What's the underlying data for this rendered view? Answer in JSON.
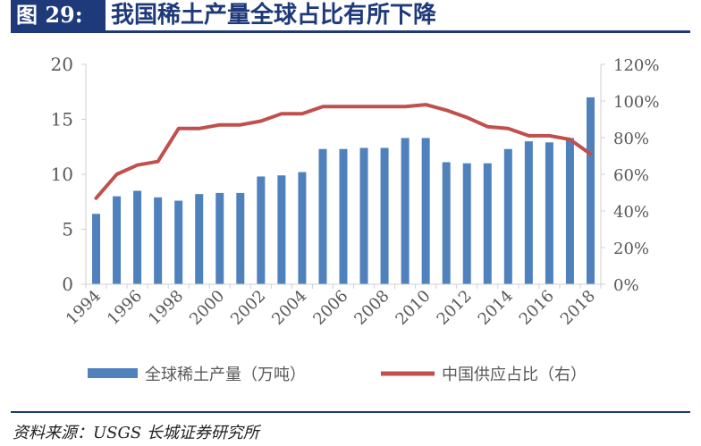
{
  "header": {
    "figure_label": "图 29:",
    "title": "我国稀土产量全球占比有所下降"
  },
  "source": "资料来源：USGS 长城证券研究所",
  "colors": {
    "bar": "#4f81bd",
    "line": "#c0504d",
    "header": "#1f3a7a",
    "axis": "#d0d0d0",
    "tick_text": "#595959"
  },
  "chart_data": {
    "type": "bar+line",
    "categories": [
      "1994",
      "1995",
      "1996",
      "1997",
      "1998",
      "1999",
      "2000",
      "2001",
      "2002",
      "2003",
      "2004",
      "2005",
      "2006",
      "2007",
      "2008",
      "2009",
      "2010",
      "2011",
      "2012",
      "2013",
      "2014",
      "2015",
      "2016",
      "2017",
      "2018"
    ],
    "x_tick_labels": [
      "1994",
      "1996",
      "1998",
      "2000",
      "2002",
      "2004",
      "2006",
      "2008",
      "2010",
      "2012",
      "2014",
      "2016",
      "2018"
    ],
    "series": [
      {
        "name": "全球稀土产量（万吨）",
        "kind": "bar",
        "axis": "left",
        "values": [
          6.4,
          8.0,
          8.5,
          7.9,
          7.6,
          8.2,
          8.3,
          8.3,
          9.8,
          9.9,
          10.2,
          12.3,
          12.3,
          12.4,
          12.4,
          13.3,
          13.3,
          11.1,
          11.0,
          11.0,
          12.3,
          13.0,
          12.9,
          13.3,
          17.0
        ]
      },
      {
        "name": "中国供应占比（右）",
        "kind": "line",
        "axis": "right",
        "values": [
          0.47,
          0.6,
          0.65,
          0.67,
          0.85,
          0.85,
          0.87,
          0.87,
          0.89,
          0.93,
          0.93,
          0.97,
          0.97,
          0.97,
          0.97,
          0.97,
          0.98,
          0.95,
          0.91,
          0.86,
          0.85,
          0.81,
          0.81,
          0.79,
          0.71
        ]
      }
    ],
    "y_left": {
      "min": 0,
      "max": 20,
      "ticks": [
        0,
        5,
        10,
        15,
        20
      ],
      "tick_labels": [
        "0",
        "5",
        "10",
        "15",
        "20"
      ]
    },
    "y_right": {
      "min": 0,
      "max": 1.2,
      "ticks": [
        0,
        0.2,
        0.4,
        0.6,
        0.8,
        1.0,
        1.2
      ],
      "tick_labels": [
        "0%",
        "20%",
        "40%",
        "60%",
        "80%",
        "100%",
        "120%"
      ]
    },
    "legend_position": "bottom",
    "grid": false
  }
}
